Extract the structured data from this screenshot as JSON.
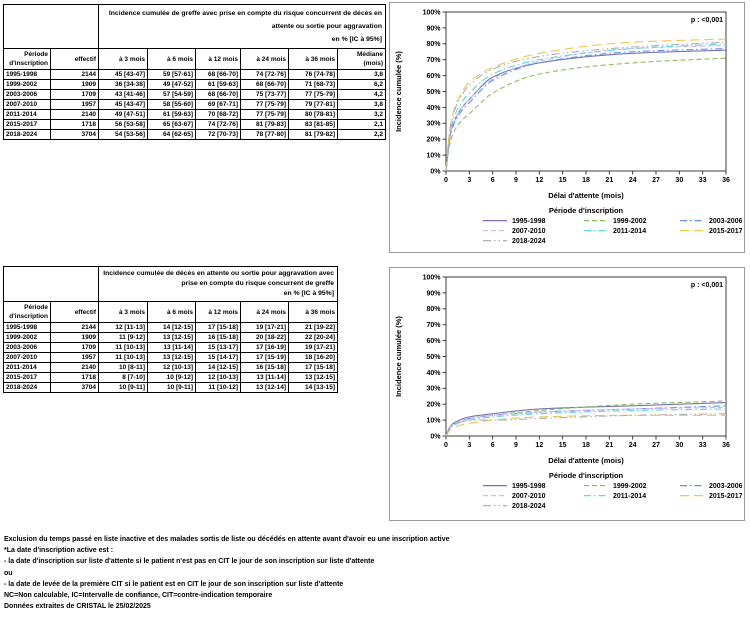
{
  "tables": [
    {
      "name": "incidence-greffe",
      "title": "Incidence cumulée de greffe avec prise en compte du risque concurrent de décès en\nattente ou sortie pour aggravation\nen % [IC à 95%]",
      "col_headers": [
        "Période\nd'inscription",
        "effectif",
        "à 3 mois",
        "à 6 mois",
        "à 12 mois",
        "à 24 mois",
        "à 36 mois",
        "Médiane\n(mois)"
      ],
      "rows": [
        [
          "1995-1998",
          "2144",
          "45 [43-47]",
          "59 [57-61]",
          "68 [66-70]",
          "74 [72-76]",
          "76 [74-78]",
          "3,8"
        ],
        [
          "1999-2002",
          "1909",
          "36 [34-38]",
          "49 [47-52]",
          "61 [59-63]",
          "68 [66-70]",
          "71 [68-73]",
          "6,2"
        ],
        [
          "2003-2006",
          "1709",
          "43 [41-46]",
          "57 [54-59]",
          "68 [66-70]",
          "75 [73-77]",
          "77 [75-79]",
          "4,2"
        ],
        [
          "2007-2010",
          "1957",
          "45 [43-47]",
          "58 [55-60]",
          "69 [67-71]",
          "77 [75-79]",
          "79 [77-81]",
          "3,8"
        ],
        [
          "2011-2014",
          "2140",
          "49 [47-51]",
          "61 [59-63]",
          "70 [68-72]",
          "77 [75-79]",
          "80 [78-81]",
          "3,2"
        ],
        [
          "2015-2017",
          "1718",
          "56 [53-58]",
          "65 [63-67]",
          "74 [72-76]",
          "81 [79-83]",
          "83 [81-85]",
          "2,1"
        ],
        [
          "2018-2024",
          "3704",
          "54 [53-56]",
          "64 [62-65]",
          "72 [70-73]",
          "78 [77-80]",
          "81 [79-82]",
          "2,2"
        ]
      ]
    },
    {
      "name": "incidence-deces",
      "title": "Incidence cumulée de décès en attente ou sortie pour aggravation avec\nprise en compte du risque concurrent de greffe\nen % [IC à 95%]",
      "col_headers": [
        "Période\nd'inscription",
        "effectif",
        "à 3 mois",
        "à 6 mois",
        "à 12 mois",
        "à 24 mois",
        "à 36 mois"
      ],
      "rows": [
        [
          "1995-1998",
          "2144",
          "12 [11-13]",
          "14 [12-15]",
          "17 [15-18]",
          "19 [17-21]",
          "21 [19-22]"
        ],
        [
          "1999-2002",
          "1909",
          "11 [9-12]",
          "13 [12-15]",
          "16 [15-18]",
          "20 [18-22]",
          "22 [20-24]"
        ],
        [
          "2003-2006",
          "1709",
          "11 [10-13]",
          "13 [11-14]",
          "15 [13-17]",
          "17 [16-19]",
          "19 [17-21]"
        ],
        [
          "2007-2010",
          "1957",
          "11 [10-13]",
          "13 [12-15]",
          "15 [14-17]",
          "17 [15-19]",
          "18 [16-20]"
        ],
        [
          "2011-2014",
          "2140",
          "10 [8-11]",
          "12 [10-13]",
          "14 [12-15]",
          "16 [15-18]",
          "17 [15-18]"
        ],
        [
          "2015-2017",
          "1718",
          "8 [7-10]",
          "10 [9-12]",
          "12 [10-13]",
          "13 [11-14]",
          "13 [12-15]"
        ],
        [
          "2018-2024",
          "3704",
          "10 [9-11]",
          "10 [9-11]",
          "11 [10-12]",
          "13 [12-14]",
          "14 [13-15]"
        ]
      ]
    }
  ],
  "chart_data": [
    {
      "type": "line",
      "name": "incidence-cumulee-greffe",
      "p_label": "p : <0,001",
      "xlabel": "Délai d'attente (mois)",
      "ylabel": "Incidence cumulée (%)",
      "legend_title": "Période d'inscription",
      "xlim": [
        0,
        36
      ],
      "ylim": [
        0,
        100
      ],
      "x_ticks": [
        0,
        3,
        6,
        9,
        12,
        15,
        18,
        21,
        24,
        27,
        30,
        33,
        36
      ],
      "y_tick_step": 10,
      "grid": false,
      "legend_position": "bottom",
      "x": [
        3,
        6,
        12,
        24,
        36
      ],
      "series": [
        {
          "name": "1995-1998",
          "color": "#7272b4",
          "dash": "solid",
          "values": [
            45,
            59,
            68,
            74,
            76
          ]
        },
        {
          "name": "1999-2002",
          "color": "#8fbe5f",
          "dash": "dash",
          "values": [
            36,
            49,
            61,
            68,
            71
          ]
        },
        {
          "name": "2003-2006",
          "color": "#6195ed",
          "dash": "dashdot",
          "values": [
            43,
            57,
            68,
            75,
            77
          ]
        },
        {
          "name": "2007-2010",
          "color": "#d5b8f2",
          "dash": "dash",
          "values": [
            45,
            58,
            69,
            77,
            79
          ]
        },
        {
          "name": "2011-2014",
          "color": "#5cd6e2",
          "dash": "dashdot",
          "values": [
            49,
            61,
            70,
            77,
            80
          ]
        },
        {
          "name": "2015-2017",
          "color": "#ecc84e",
          "dash": "longdash",
          "values": [
            56,
            65,
            74,
            81,
            83
          ]
        },
        {
          "name": "2018-2024",
          "color": "#b0b0b0",
          "dash": "dashdotdot",
          "values": [
            54,
            64,
            72,
            78,
            81
          ]
        }
      ]
    },
    {
      "type": "line",
      "name": "incidence-cumulee-deces",
      "p_label": "p : <0,001",
      "xlabel": "Délai d'attente (mois)",
      "ylabel": "Incidence cumulée (%)",
      "legend_title": "Période d'inscription",
      "xlim": [
        0,
        36
      ],
      "ylim": [
        0,
        100
      ],
      "x_ticks": [
        0,
        3,
        6,
        9,
        12,
        15,
        18,
        21,
        24,
        27,
        30,
        33,
        36
      ],
      "y_tick_step": 10,
      "grid": false,
      "legend_position": "bottom",
      "x": [
        3,
        6,
        12,
        24,
        36
      ],
      "series": [
        {
          "name": "1995-1998",
          "color": "#7272b4",
          "dash": "solid",
          "values": [
            12,
            14,
            17,
            19,
            21
          ]
        },
        {
          "name": "1999-2002",
          "color": "#8fbe5f",
          "dash": "dash",
          "values": [
            11,
            13,
            16,
            20,
            22
          ]
        },
        {
          "name": "2003-2006",
          "color": "#6195ed",
          "dash": "dashdot",
          "values": [
            11,
            13,
            15,
            17,
            19
          ]
        },
        {
          "name": "2007-2010",
          "color": "#d5b8f2",
          "dash": "dash",
          "values": [
            11,
            13,
            15,
            17,
            18
          ]
        },
        {
          "name": "2011-2014",
          "color": "#5cd6e2",
          "dash": "dashdot",
          "values": [
            10,
            12,
            14,
            16,
            17
          ]
        },
        {
          "name": "2015-2017",
          "color": "#ecc84e",
          "dash": "longdash",
          "values": [
            8,
            10,
            12,
            13,
            13
          ]
        },
        {
          "name": "2018-2024",
          "color": "#b0b0b0",
          "dash": "dashdotdot",
          "values": [
            10,
            10,
            11,
            13,
            14
          ]
        }
      ]
    }
  ],
  "footer": {
    "lines": [
      "Exclusion du temps passé en liste inactive et des malades sortis de liste ou décédés en attente avant d'avoir eu une inscription active",
      "*La date d'inscription active est :",
      "- la date d'inscription sur liste d'attente si le patient n'est pas en CIT le jour de son inscription sur liste d'attente",
      "ou",
      "- la date de levée de la première CIT si le patient est en CIT le jour de son inscription sur liste d'attente",
      "NC=Non calculable, IC=Intervalle de confiance, CIT=contre-indication temporaire",
      "Données extraites de CRISTAL le 25/02/2025"
    ]
  }
}
